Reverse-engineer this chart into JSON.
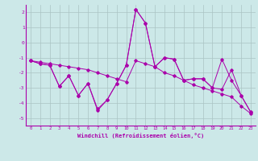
{
  "xlabel": "Windchill (Refroidissement éolien,°C)",
  "background_color": "#cce8e8",
  "grid_color": "#aac4c4",
  "line_color": "#aa00aa",
  "xlim": [
    -0.5,
    23.5
  ],
  "ylim": [
    -5.5,
    2.5
  ],
  "yticks": [
    -5,
    -4,
    -3,
    -2,
    -1,
    0,
    1,
    2
  ],
  "xticks": [
    0,
    1,
    2,
    3,
    4,
    5,
    6,
    7,
    8,
    9,
    10,
    11,
    12,
    13,
    14,
    15,
    16,
    17,
    18,
    19,
    20,
    21,
    22,
    23
  ],
  "series": [
    [
      -1.2,
      -1.4,
      -1.5,
      -2.9,
      -2.2,
      -3.5,
      -2.7,
      -4.4,
      -3.8,
      -2.7,
      -1.5,
      2.2,
      1.3,
      -1.6,
      -1.0,
      -1.1,
      -2.5,
      -2.4,
      -2.4,
      -3.0,
      -3.1,
      -1.8,
      -3.5,
      -4.6
    ],
    [
      -1.2,
      -1.4,
      -1.5,
      -2.9,
      -2.2,
      -3.5,
      -2.7,
      -4.5,
      -3.8,
      -2.7,
      -1.5,
      2.2,
      1.3,
      -1.6,
      -1.0,
      -1.1,
      -2.5,
      -2.4,
      -2.4,
      -3.0,
      -1.1,
      -2.5,
      -3.5,
      -4.6
    ],
    [
      -1.2,
      -1.3,
      -1.4,
      -1.5,
      -1.6,
      -1.7,
      -1.8,
      -2.0,
      -2.2,
      -2.4,
      -2.6,
      -1.2,
      -1.4,
      -1.6,
      -2.0,
      -2.2,
      -2.5,
      -2.8,
      -3.0,
      -3.2,
      -3.4,
      -3.6,
      -4.2,
      -4.7
    ]
  ]
}
